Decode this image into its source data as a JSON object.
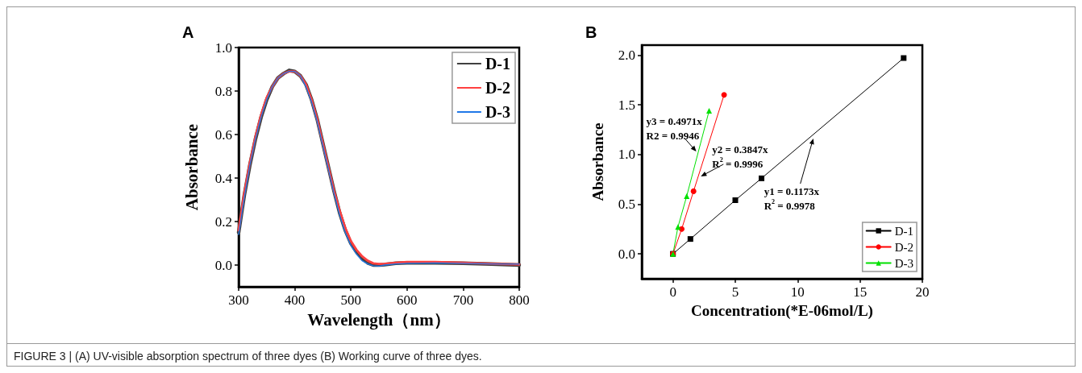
{
  "chart_data": [
    {
      "type": "line",
      "title": "A",
      "xlabel": "Wavelength（nm）",
      "ylabel": "Absorbance",
      "xlim": [
        300,
        800
      ],
      "ylim": [
        -0.1,
        1.0
      ],
      "xticks": [
        300,
        400,
        500,
        600,
        700,
        800
      ],
      "yticks": [
        {
          "value": 0,
          "label": "0.0"
        },
        {
          "value": 0.2,
          "label": "0.2"
        },
        {
          "value": 0.4,
          "label": "0.4"
        },
        {
          "value": 0.6,
          "label": "0.6"
        },
        {
          "value": 0.8,
          "label": "0.8"
        },
        {
          "value": 1.0,
          "label": "1.0"
        }
      ],
      "legend": "top right",
      "marker": "none",
      "grid": false,
      "x": [
        300,
        310,
        320,
        330,
        340,
        350,
        360,
        370,
        380,
        390,
        400,
        410,
        420,
        430,
        440,
        450,
        460,
        470,
        480,
        490,
        500,
        510,
        520,
        530,
        540,
        550,
        560,
        580,
        600,
        650,
        700,
        750,
        800
      ],
      "series": [
        {
          "name": "D-1",
          "color": "#404040",
          "values": [
            0.15,
            0.32,
            0.46,
            0.58,
            0.68,
            0.76,
            0.82,
            0.86,
            0.88,
            0.895,
            0.89,
            0.87,
            0.83,
            0.76,
            0.67,
            0.56,
            0.45,
            0.34,
            0.24,
            0.16,
            0.1,
            0.06,
            0.03,
            0.01,
            0.0,
            0.0,
            0.002,
            0.008,
            0.01,
            0.01,
            0.008,
            0.005,
            0.0
          ]
        },
        {
          "name": "D-2",
          "color": "#ff4040",
          "values": [
            0.16,
            0.33,
            0.47,
            0.59,
            0.69,
            0.77,
            0.82,
            0.86,
            0.88,
            0.89,
            0.89,
            0.87,
            0.83,
            0.76,
            0.67,
            0.56,
            0.45,
            0.34,
            0.25,
            0.17,
            0.11,
            0.07,
            0.04,
            0.02,
            0.008,
            0.005,
            0.006,
            0.01,
            0.014,
            0.014,
            0.01,
            0.006,
            0.003
          ]
        },
        {
          "name": "D-3",
          "color": "#1f78e8",
          "values": [
            0.14,
            0.31,
            0.46,
            0.58,
            0.68,
            0.76,
            0.82,
            0.86,
            0.88,
            0.89,
            0.89,
            0.87,
            0.82,
            0.75,
            0.66,
            0.55,
            0.44,
            0.33,
            0.23,
            0.15,
            0.09,
            0.05,
            0.02,
            0.005,
            -0.003,
            -0.005,
            0.0,
            0.005,
            0.008,
            0.01,
            0.008,
            0.005,
            0.004
          ]
        }
      ],
      "annotations": [
        "FIGURE 3 | (A) UV-visible absorption spectrum of three dyes (B) Working curve of three dyes."
      ]
    },
    {
      "type": "line",
      "title": "B",
      "xlabel": "Concentration(*E-06mol/L)",
      "ylabel": "Absorbance",
      "xlim": [
        -2.5,
        20
      ],
      "ylim": [
        -0.25,
        2.1
      ],
      "xticks": [
        0,
        5,
        10,
        15,
        20
      ],
      "yticks": [
        {
          "value": 0,
          "label": "0.0"
        },
        {
          "value": 0.5,
          "label": "0.5"
        },
        {
          "value": 1.0,
          "label": "1.0"
        },
        {
          "value": 1.5,
          "label": "1.5"
        },
        {
          "value": 2.0,
          "label": "2.0"
        }
      ],
      "legend": "bottom right",
      "grid": false,
      "series": [
        {
          "name": "D-1",
          "color": "#000000",
          "marker": "square",
          "x": [
            0,
            1.4,
            5,
            7.1,
            18.5
          ],
          "values": [
            0,
            0.15,
            0.54,
            0.76,
            1.97
          ]
        },
        {
          "name": "D-2",
          "color": "#ff0000",
          "marker": "circle",
          "x": [
            0,
            0.7,
            1.65,
            4.1
          ],
          "values": [
            0,
            0.25,
            0.63,
            1.6
          ]
        },
        {
          "name": "D-3",
          "color": "#00e000",
          "marker": "triangle",
          "x": [
            0,
            0.4,
            1.1,
            2.9
          ],
          "values": [
            0,
            0.27,
            0.58,
            1.44
          ]
        }
      ],
      "annotations": [
        {
          "text": "y3 = 0.4971x\nR2 = 0.9946",
          "x": 1.87,
          "y": 1.03
        },
        {
          "text": "y2 = 0.3847x\nR$^{2}$ = 0.9996",
          "x": 2.24,
          "y": 0.78
        },
        {
          "text": "y1 = 0.1173x\nR$^{2}$ = 0.9978",
          "x": 11.25,
          "y": 1.16
        }
      ]
    }
  ]
}
